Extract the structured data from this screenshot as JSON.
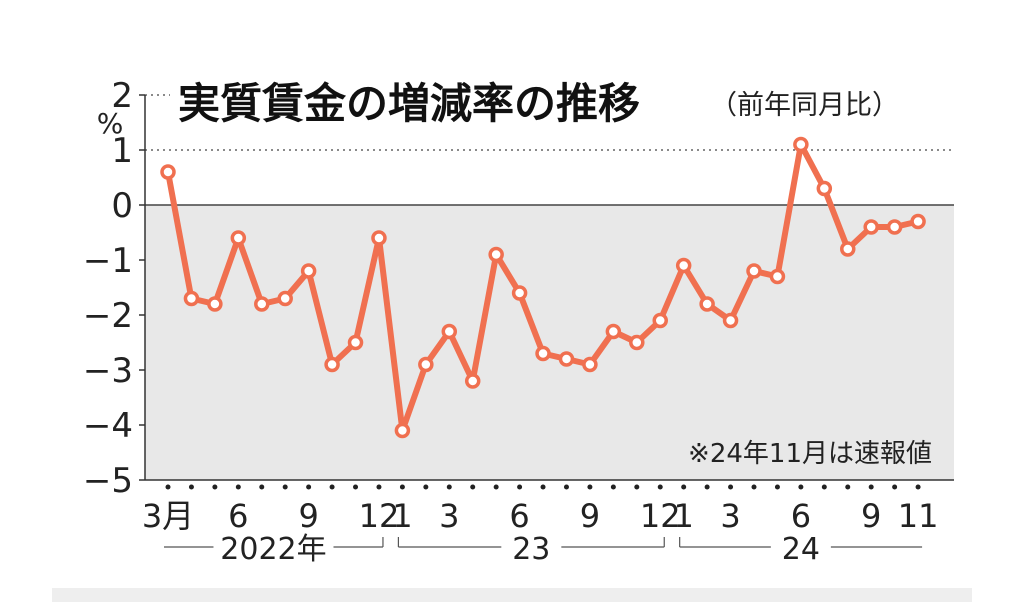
{
  "chart_data": {
    "type": "line",
    "title": "実質賃金の増減率の推移",
    "subtitle": "（前年同月比）",
    "ylabel": "%",
    "note": "※24年11月は速報値",
    "ylim": [
      -5,
      2
    ],
    "y_ticks": [
      "2",
      "1",
      "0",
      "−1",
      "−2",
      "−3",
      "−4",
      "−5"
    ],
    "y_tick_values": [
      2,
      1,
      0,
      -1,
      -2,
      -3,
      -4,
      -5
    ],
    "x_tick_labels": [
      "3月",
      "6",
      "9",
      "12",
      "1",
      "3",
      "6",
      "9",
      "12",
      "1",
      "3",
      "6",
      "9",
      "11"
    ],
    "x_tick_months": [
      "2022-03",
      "2022-06",
      "2022-09",
      "2022-12",
      "2023-01",
      "2023-03",
      "2023-06",
      "2023-09",
      "2023-12",
      "2024-01",
      "2024-03",
      "2024-06",
      "2024-09",
      "2024-11"
    ],
    "year_groups": [
      {
        "label": "2022年",
        "start": "2022-03",
        "end": "2022-12"
      },
      {
        "label": "23",
        "start": "2023-01",
        "end": "2023-12"
      },
      {
        "label": "24",
        "start": "2024-01",
        "end": "2024-11"
      }
    ],
    "grid": "dotted line at 1",
    "colors": {
      "line": "#F07050",
      "plot_bg": "#E8E8E8",
      "marker_fill": "#FFFFFF"
    },
    "series": [
      {
        "x": [
          "2022-03",
          "2022-04",
          "2022-05",
          "2022-06",
          "2022-07",
          "2022-08",
          "2022-09",
          "2022-10",
          "2022-11",
          "2022-12",
          "2023-01",
          "2023-02",
          "2023-03",
          "2023-04",
          "2023-05",
          "2023-06",
          "2023-07",
          "2023-08",
          "2023-09",
          "2023-10",
          "2023-11",
          "2023-12",
          "2024-01",
          "2024-02",
          "2024-03",
          "2024-04",
          "2024-05",
          "2024-06",
          "2024-07",
          "2024-08",
          "2024-09",
          "2024-10",
          "2024-11"
        ],
        "values": [
          0.6,
          -1.7,
          -1.8,
          -0.6,
          -1.8,
          -1.7,
          -1.2,
          -2.9,
          -2.5,
          -0.6,
          -4.1,
          -2.9,
          -2.3,
          -3.2,
          -0.9,
          -1.6,
          -2.7,
          -2.8,
          -2.9,
          -2.3,
          -2.5,
          -2.1,
          -1.1,
          -1.8,
          -2.1,
          -1.2,
          -1.3,
          1.1,
          0.3,
          -0.8,
          -0.4,
          -0.4,
          -0.3
        ]
      }
    ]
  }
}
